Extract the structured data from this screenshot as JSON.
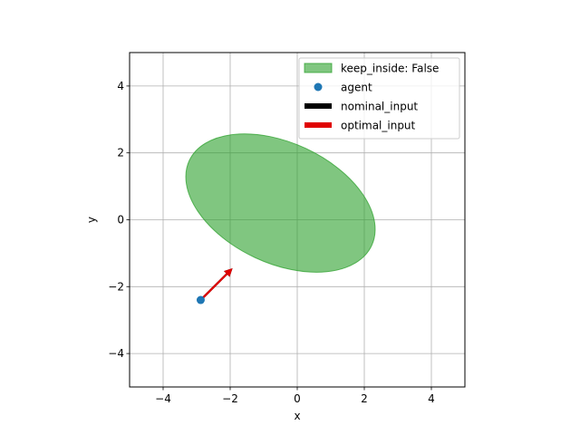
{
  "chart_data": {
    "type": "scatter",
    "title": "",
    "xlabel": "x",
    "ylabel": "y",
    "xlim": [
      -5,
      5
    ],
    "ylim": [
      -5,
      5
    ],
    "grid": true,
    "aspect": "equal",
    "xticks": [
      -4,
      -2,
      0,
      2,
      4
    ],
    "yticks": [
      -4,
      -2,
      0,
      2,
      4
    ],
    "xtick_labels": [
      "−4",
      "−2",
      "0",
      "2",
      "4"
    ],
    "ytick_labels": [
      "−4",
      "−2",
      "0",
      "2",
      "4"
    ],
    "region": {
      "name": "keep_inside: False",
      "shape": "ellipse",
      "center": [
        -0.5,
        0.5
      ],
      "semi_axes": [
        3.0,
        1.8
      ],
      "angle_deg": -25,
      "color": "#2ca02c",
      "alpha": 0.6
    },
    "agent": {
      "name": "agent",
      "x": -2.88,
      "y": -2.4,
      "color": "#1f77b4"
    },
    "nominal_input": {
      "name": "nominal_input",
      "dx": 0.95,
      "dy": 0.95,
      "color": "#000000"
    },
    "optimal_input": {
      "name": "optimal_input",
      "dx": 0.95,
      "dy": 0.95,
      "color": "#e00000"
    },
    "legend": {
      "placement": "top-right",
      "entries": [
        "keep_inside: False",
        "agent",
        "nominal_input",
        "optimal_input"
      ]
    }
  }
}
